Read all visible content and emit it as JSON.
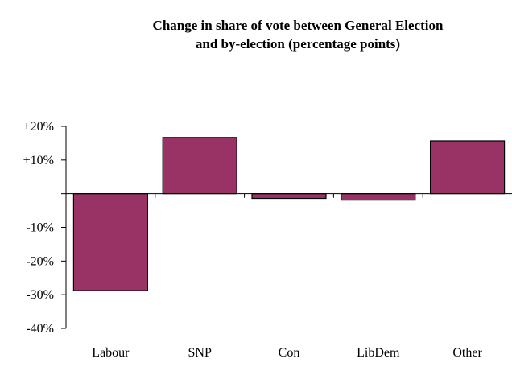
{
  "chart_data": {
    "type": "bar",
    "title_line1": "Change in share of vote between General Election",
    "title_line2": "and by-election (percentage points)",
    "categories": [
      "Labour",
      "SNP",
      "Con",
      "LibDem",
      "Other"
    ],
    "values": [
      -28.8,
      16.7,
      -1.4,
      -1.9,
      15.7
    ],
    "unit": "%",
    "ylim": [
      -40,
      20
    ],
    "y_ticks": [
      20,
      10,
      0,
      -10,
      -20,
      -30,
      -40
    ],
    "y_tick_labels": [
      "+20%",
      "+10%",
      "",
      "-10%",
      "-20%",
      "-30%",
      "-40%"
    ],
    "bar_color": "#993366",
    "grid": false,
    "legend": "none"
  }
}
